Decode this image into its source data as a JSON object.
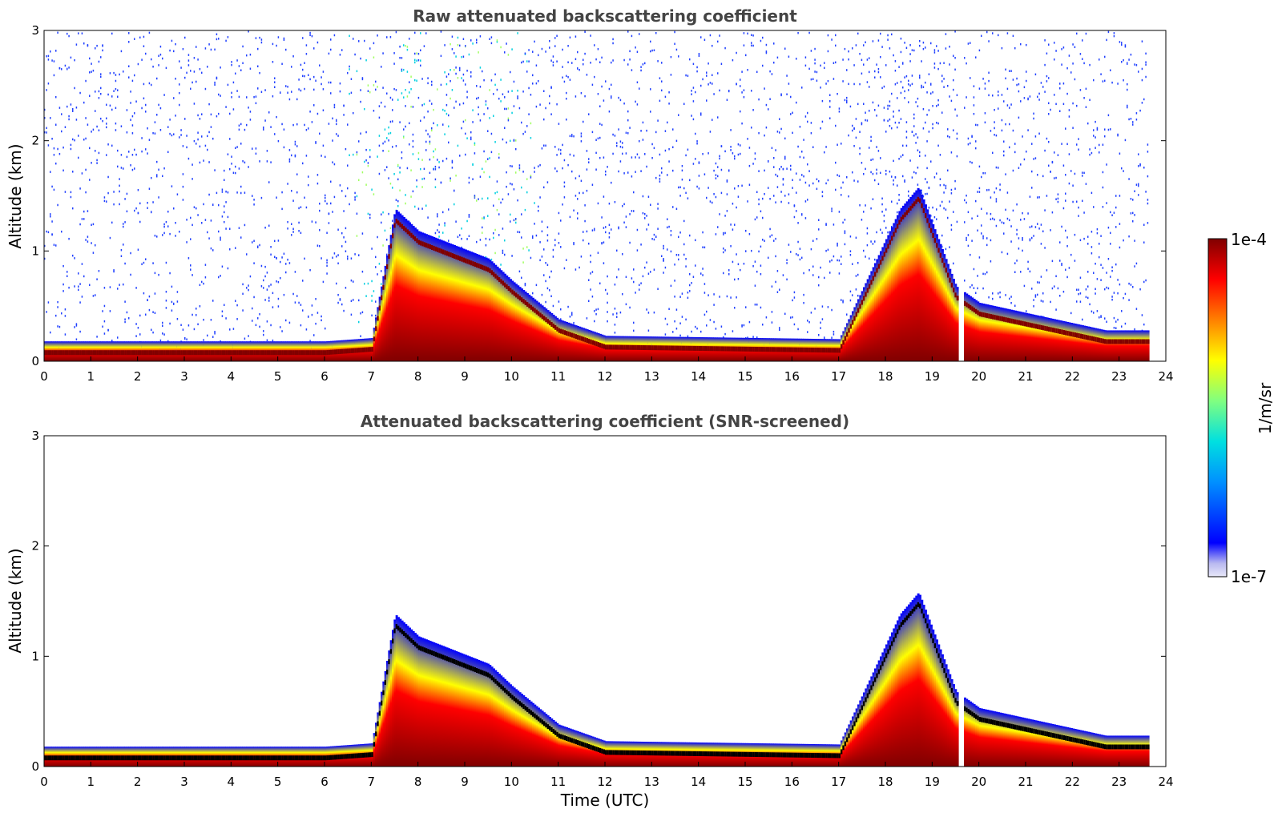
{
  "chart_data": [
    {
      "type": "heatmap",
      "title": "Raw attenuated backscattering coefficient",
      "ylabel": "Altitude (km)",
      "xlabel": "",
      "xlim": [
        0,
        24
      ],
      "ylim": [
        0,
        3
      ],
      "xticks": [
        "0",
        "1",
        "2",
        "3",
        "4",
        "5",
        "6",
        "7",
        "8",
        "9",
        "10",
        "11",
        "12",
        "13",
        "14",
        "15",
        "16",
        "17",
        "18",
        "19",
        "20",
        "21",
        "22",
        "23",
        "24"
      ],
      "yticks": [
        "0",
        "1",
        "2",
        "3"
      ],
      "data_end_hour": 23.6,
      "gap_hours": [
        19.55,
        19.65
      ],
      "boundary_layer_top_km": [
        {
          "t": 0,
          "z": 0.1
        },
        {
          "t": 6,
          "z": 0.1
        },
        {
          "t": 7,
          "z": 0.13
        },
        {
          "t": 7.5,
          "z": 1.3
        },
        {
          "t": 8,
          "z": 1.1
        },
        {
          "t": 9.5,
          "z": 0.85
        },
        {
          "t": 10,
          "z": 0.65
        },
        {
          "t": 11,
          "z": 0.3
        },
        {
          "t": 12,
          "z": 0.15
        },
        {
          "t": 17,
          "z": 0.12
        },
        {
          "t": 18.3,
          "z": 1.3
        },
        {
          "t": 18.7,
          "z": 1.5
        },
        {
          "t": 19.5,
          "z": 0.6
        },
        {
          "t": 20,
          "z": 0.45
        },
        {
          "t": 22.7,
          "z": 0.2
        }
      ]
    },
    {
      "type": "heatmap",
      "title": "Attenuated backscattering coefficient (SNR-screened)",
      "ylabel": "Altitude (km)",
      "xlabel": "Time (UTC)",
      "xlim": [
        0,
        24
      ],
      "ylim": [
        0,
        3
      ],
      "xticks": [
        "0",
        "1",
        "2",
        "3",
        "4",
        "5",
        "6",
        "7",
        "8",
        "9",
        "10",
        "11",
        "12",
        "13",
        "14",
        "15",
        "16",
        "17",
        "18",
        "19",
        "20",
        "21",
        "22",
        "23",
        "24"
      ],
      "yticks": [
        "0",
        "1",
        "2",
        "3"
      ]
    }
  ],
  "colorbar": {
    "label": "1/m/sr",
    "max_label": "1e-4",
    "min_label": "1e-7",
    "scale": "log",
    "colormap": [
      "#e8e8f8",
      "#0000ff",
      "#00a0ff",
      "#00e0e0",
      "#80ff80",
      "#ffff00",
      "#ff8000",
      "#ff0000",
      "#800000"
    ]
  }
}
